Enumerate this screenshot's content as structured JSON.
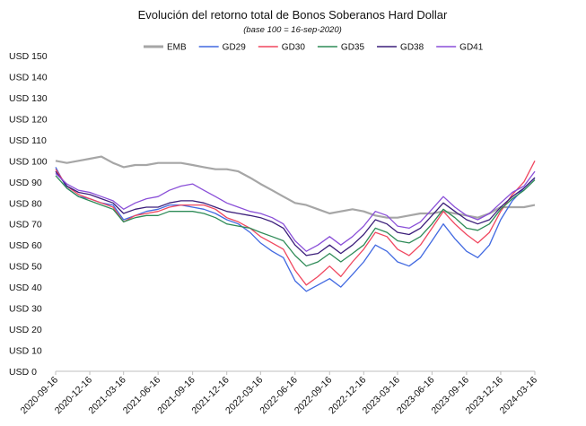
{
  "chart_data": {
    "type": "line",
    "title": "Evolución del retorno total de Bonos Soberanos Hard Dollar",
    "subtitle": "(base 100 = 16-sep-2020)",
    "xlabel": "",
    "ylabel": "",
    "ylim": [
      0,
      150
    ],
    "yticks": [
      0,
      10,
      20,
      30,
      40,
      50,
      60,
      70,
      80,
      90,
      100,
      110,
      120,
      130,
      140,
      150
    ],
    "ytick_labels": [
      "USD 0",
      "USD 10",
      "USD 20",
      "USD 30",
      "USD 40",
      "USD 50",
      "USD 60",
      "USD 70",
      "USD 80",
      "USD 90",
      "USD 100",
      "USD 110",
      "USD 120",
      "USD 130",
      "USD 140",
      "USD 150"
    ],
    "xticks": [
      "2020-09-16",
      "2020-12-16",
      "2021-03-16",
      "2021-06-16",
      "2021-09-16",
      "2021-12-16",
      "2022-03-16",
      "2022-06-16",
      "2022-09-16",
      "2022-12-16",
      "2023-03-16",
      "2023-06-16",
      "2023-09-16",
      "2023-12-16",
      "2024-03-16"
    ],
    "grid": false,
    "legend_position": "top",
    "x": [
      "2020-09-16",
      "2020-10-16",
      "2020-11-16",
      "2020-12-16",
      "2021-01-16",
      "2021-02-16",
      "2021-03-16",
      "2021-04-16",
      "2021-05-16",
      "2021-06-16",
      "2021-07-16",
      "2021-08-16",
      "2021-09-16",
      "2021-10-16",
      "2021-11-16",
      "2021-12-16",
      "2022-01-16",
      "2022-02-16",
      "2022-03-16",
      "2022-04-16",
      "2022-05-16",
      "2022-06-16",
      "2022-07-16",
      "2022-08-16",
      "2022-09-16",
      "2022-10-16",
      "2022-11-16",
      "2022-12-16",
      "2023-01-16",
      "2023-02-16",
      "2023-03-16",
      "2023-04-16",
      "2023-05-16",
      "2023-06-16",
      "2023-07-16",
      "2023-08-16",
      "2023-09-16",
      "2023-10-16",
      "2023-11-16",
      "2023-12-16",
      "2024-01-16",
      "2024-02-16",
      "2024-03-16"
    ],
    "series": [
      {
        "name": "EMB",
        "color": "#a6a6a6",
        "values": [
          100,
          99,
          100,
          101,
          102,
          99,
          97,
          98,
          98,
          99,
          99,
          99,
          98,
          97,
          96,
          96,
          95,
          92,
          89,
          86,
          83,
          80,
          79,
          77,
          75,
          76,
          77,
          76,
          74,
          73,
          73,
          74,
          75,
          75,
          76,
          75,
          74,
          73,
          75,
          78,
          78,
          78,
          79
        ]
      },
      {
        "name": "GD29",
        "color": "#4169e1",
        "values": [
          97,
          87,
          83,
          82,
          80,
          79,
          72,
          74,
          76,
          77,
          79,
          79,
          78,
          77,
          75,
          72,
          70,
          66,
          61,
          57,
          54,
          43,
          38,
          41,
          44,
          40,
          46,
          52,
          60,
          57,
          52,
          50,
          54,
          62,
          70,
          63,
          57,
          54,
          60,
          72,
          81,
          87,
          92
        ]
      },
      {
        "name": "GD30",
        "color": "#f0475f",
        "values": [
          96,
          88,
          84,
          82,
          80,
          78,
          71,
          74,
          75,
          76,
          78,
          79,
          79,
          79,
          77,
          73,
          71,
          68,
          64,
          61,
          58,
          48,
          41,
          45,
          50,
          45,
          52,
          58,
          66,
          64,
          58,
          55,
          60,
          68,
          76,
          70,
          65,
          61,
          66,
          76,
          84,
          90,
          100
        ]
      },
      {
        "name": "GD35",
        "color": "#2e8b57",
        "values": [
          93,
          87,
          83,
          81,
          79,
          77,
          71,
          73,
          74,
          74,
          76,
          76,
          76,
          75,
          73,
          70,
          69,
          68,
          66,
          64,
          62,
          55,
          50,
          52,
          56,
          52,
          56,
          60,
          68,
          66,
          62,
          61,
          64,
          70,
          77,
          73,
          68,
          67,
          70,
          77,
          82,
          86,
          91
        ]
      },
      {
        "name": "GD38",
        "color": "#3b1e7a",
        "values": [
          95,
          88,
          85,
          84,
          82,
          80,
          75,
          77,
          78,
          78,
          80,
          81,
          81,
          80,
          78,
          76,
          75,
          74,
          73,
          71,
          68,
          60,
          55,
          56,
          60,
          56,
          60,
          65,
          72,
          70,
          66,
          65,
          68,
          74,
          80,
          76,
          72,
          70,
          72,
          78,
          83,
          87,
          92
        ]
      },
      {
        "name": "GD41",
        "color": "#8a4fd8",
        "values": [
          94,
          89,
          86,
          85,
          83,
          81,
          77,
          80,
          82,
          83,
          86,
          88,
          89,
          86,
          83,
          80,
          78,
          76,
          75,
          73,
          70,
          62,
          57,
          60,
          64,
          60,
          64,
          69,
          76,
          74,
          69,
          68,
          71,
          77,
          83,
          78,
          74,
          72,
          75,
          80,
          85,
          88,
          95
        ]
      }
    ]
  }
}
